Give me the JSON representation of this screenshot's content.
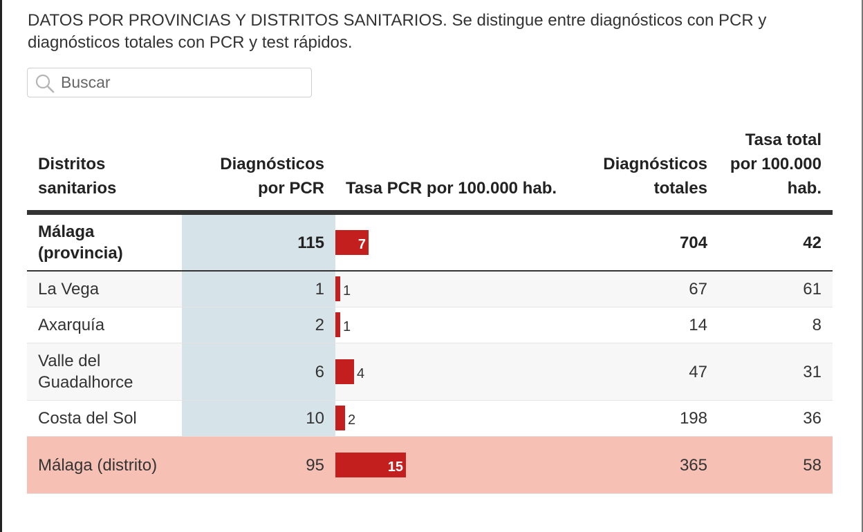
{
  "description": "DATOS POR PROVINCIAS Y DISTRITOS SANITARIOS. Se distingue entre diagnósticos con PCR y diagnósticos totales con PCR y test rápidos.",
  "search": {
    "placeholder": "Buscar",
    "icon": "search-icon"
  },
  "table": {
    "headers": {
      "district": "Distritos sanitarios",
      "pcr": "Diagnósticos por PCR",
      "pcr_rate": "Tasa PCR por 100.000 hab.",
      "total": "Diagnósticos totales",
      "total_rate": "Tasa total por 100.000 hab."
    },
    "bar_scale_max": 15,
    "bar_color": "#c41f1f",
    "highlight_color": "#f6c1b4",
    "pcr_column_color": "#d6e3e8",
    "rows": [
      {
        "name": "Málaga (provincia)",
        "pcr": "115",
        "pcr_rate": 7,
        "pcr_rate_label": "7",
        "total": "704",
        "total_rate": "42",
        "type": "total"
      },
      {
        "name": "La Vega",
        "pcr": "1",
        "pcr_rate": 1,
        "pcr_rate_label": "1",
        "total": "67",
        "total_rate": "61",
        "type": "alt"
      },
      {
        "name": "Axarquía",
        "pcr": "2",
        "pcr_rate": 1,
        "pcr_rate_label": "1",
        "total": "14",
        "total_rate": "8",
        "type": "normal"
      },
      {
        "name": "Valle del Guadalhorce",
        "pcr": "6",
        "pcr_rate": 4,
        "pcr_rate_label": "4",
        "total": "47",
        "total_rate": "31",
        "type": "alt"
      },
      {
        "name": "Costa del Sol",
        "pcr": "10",
        "pcr_rate": 2,
        "pcr_rate_label": "2",
        "total": "198",
        "total_rate": "36",
        "type": "normal"
      },
      {
        "name": "Málaga (distrito)",
        "pcr": "95",
        "pcr_rate": 15,
        "pcr_rate_label": "15",
        "total": "365",
        "total_rate": "58",
        "type": "highlight"
      }
    ]
  }
}
